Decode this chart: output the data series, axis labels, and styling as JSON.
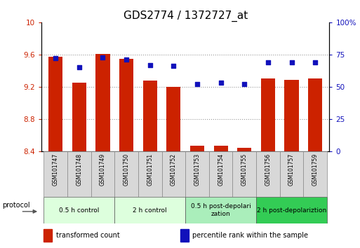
{
  "title": "GDS2774 / 1372727_at",
  "samples": [
    "GSM101747",
    "GSM101748",
    "GSM101749",
    "GSM101750",
    "GSM101751",
    "GSM101752",
    "GSM101753",
    "GSM101754",
    "GSM101755",
    "GSM101756",
    "GSM101757",
    "GSM101759"
  ],
  "bar_values": [
    9.57,
    9.25,
    9.61,
    9.55,
    9.28,
    9.2,
    8.47,
    8.47,
    8.44,
    9.3,
    9.29,
    9.3
  ],
  "percentile_values": [
    72,
    65,
    73,
    71,
    67,
    66,
    52,
    53,
    52,
    69,
    69,
    69
  ],
  "ylim_left": [
    8.4,
    10.0
  ],
  "ylim_right": [
    0,
    100
  ],
  "yticks_left": [
    8.4,
    8.8,
    9.2,
    9.6,
    10.0
  ],
  "yticks_right": [
    0,
    25,
    50,
    75,
    100
  ],
  "ytick_labels_left": [
    "8.4",
    "8.8",
    "9.2",
    "9.6",
    "10"
  ],
  "ytick_labels_right": [
    "0",
    "25",
    "50",
    "75",
    "100%"
  ],
  "bar_color": "#cc2200",
  "dot_color": "#1111bb",
  "bar_bottom": 8.4,
  "groups": [
    {
      "label": "0.5 h control",
      "start": 0,
      "end": 3,
      "color": "#ddffdd"
    },
    {
      "label": "2 h control",
      "start": 3,
      "end": 6,
      "color": "#ddffdd"
    },
    {
      "label": "0.5 h post-depolarization",
      "start": 6,
      "end": 9,
      "color": "#aaeebb"
    },
    {
      "label": "2 h post-depolariztion",
      "start": 9,
      "end": 12,
      "color": "#33cc55"
    }
  ],
  "protocol_label": "protocol",
  "legend_items": [
    {
      "color": "#cc2200",
      "label": "transformed count"
    },
    {
      "color": "#1111bb",
      "label": "percentile rank within the sample"
    }
  ],
  "grid_color": "#888888",
  "background_color": "#ffffff",
  "tick_label_color_left": "#cc2200",
  "tick_label_color_right": "#1111bb",
  "title_fontsize": 11,
  "axis_fontsize": 7.5,
  "sample_fontsize": 5.5,
  "group_fontsize": 6.5,
  "legend_fontsize": 7
}
